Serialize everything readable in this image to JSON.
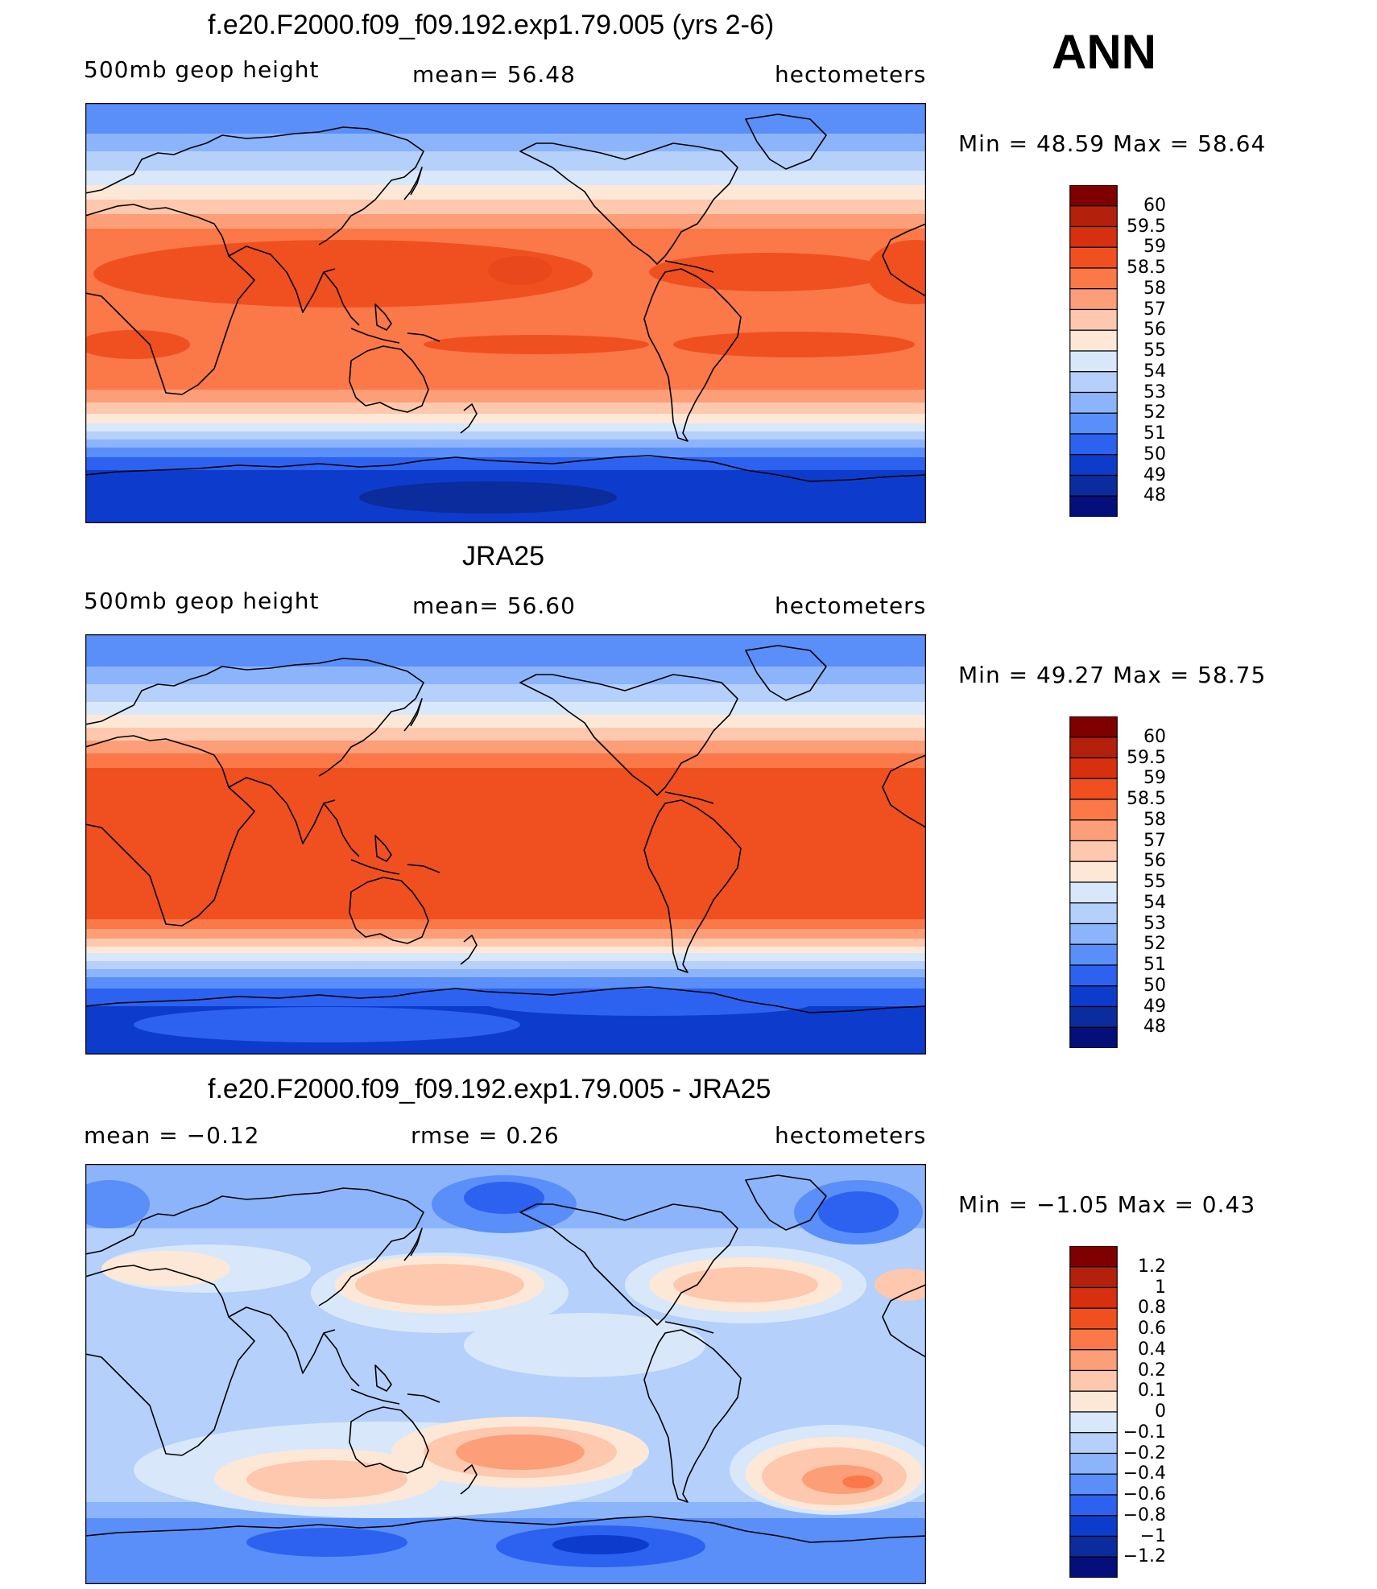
{
  "season": "ANN",
  "panels": [
    {
      "id": "model",
      "title": "f.e20.F2000.f09_f09.192.exp1.79.005 (yrs 2-6)",
      "left_label": "500mb geop height",
      "center_label": "mean=   56.48",
      "right_label": "hectometers",
      "minmax": "Min =   48.59 Max =   58.64",
      "colorbar": {
        "ticks": [
          "60",
          "59.5",
          "59",
          "58.5",
          "58",
          "57",
          "56",
          "55",
          "54",
          "53",
          "52",
          "51",
          "50",
          "49",
          "48"
        ],
        "colors": [
          "#7f0000",
          "#b3200c",
          "#d7300f",
          "#f05020",
          "#fb7848",
          "#fc9e78",
          "#fdc8ae",
          "#fde8d8",
          "#d8e8fa",
          "#b4d0fb",
          "#8cb4fb",
          "#5a8ef8",
          "#2d62f0",
          "#0d3ccc",
          "#0a2c9c",
          "#040f7a"
        ]
      }
    },
    {
      "id": "obs",
      "title": "JRA25",
      "left_label": "500mb geop height",
      "center_label": "mean=   56.60",
      "right_label": "hectometers",
      "minmax": "Min =   49.27 Max =   58.75",
      "colorbar": {
        "ticks": [
          "60",
          "59.5",
          "59",
          "58.5",
          "58",
          "57",
          "56",
          "55",
          "54",
          "53",
          "52",
          "51",
          "50",
          "49",
          "48"
        ],
        "colors": [
          "#7f0000",
          "#b3200c",
          "#d7300f",
          "#f05020",
          "#fb7848",
          "#fc9e78",
          "#fdc8ae",
          "#fde8d8",
          "#d8e8fa",
          "#b4d0fb",
          "#8cb4fb",
          "#5a8ef8",
          "#2d62f0",
          "#0d3ccc",
          "#0a2c9c",
          "#040f7a"
        ]
      }
    },
    {
      "id": "diff",
      "title": "f.e20.F2000.f09_f09.192.exp1.79.005 - JRA25",
      "left_label": "mean =    −0.12",
      "center_label": "rmse =     0.26",
      "right_label": "hectometers",
      "minmax": "Min =   −1.05 Max =     0.43",
      "colorbar": {
        "ticks": [
          "1.2",
          "1",
          "0.8",
          "0.6",
          "0.4",
          "0.2",
          "0.1",
          "0",
          "−0.1",
          "−0.2",
          "−0.4",
          "−0.6",
          "−0.8",
          "−1",
          "−1.2"
        ],
        "colors": [
          "#7f0000",
          "#b3200c",
          "#d7300f",
          "#f05020",
          "#fb7848",
          "#fc9e78",
          "#fdc8ae",
          "#fde8d8",
          "#d8e8fa",
          "#b4d0fb",
          "#8cb4fb",
          "#5a8ef8",
          "#2d62f0",
          "#0d3ccc",
          "#0a2c9c",
          "#040f7a"
        ]
      }
    }
  ],
  "palette": {
    "warm_dark": "#e8481c",
    "warm_mid": "#fb7848",
    "warm_light": "#fdc8ae",
    "warm_pale": "#fde8d8",
    "cool_pale": "#d8e8fa",
    "cool_light": "#b4d0fb",
    "cool_mid": "#8cb4fb",
    "cool_med": "#5a8ef8",
    "cool_strong": "#2d62f0",
    "cool_dark": "#0d3ccc",
    "cool_deep": "#0a2c9c"
  }
}
